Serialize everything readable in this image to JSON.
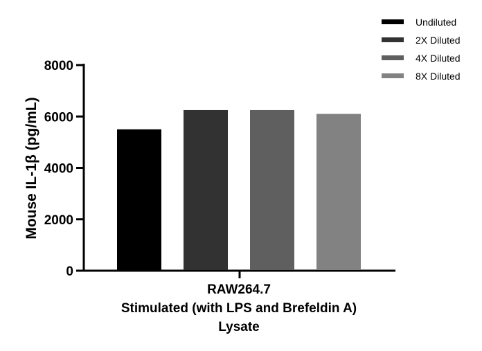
{
  "chart_data": {
    "type": "bar",
    "categories": [
      "RAW264.7"
    ],
    "series": [
      {
        "name": "Undiluted",
        "values": [
          5500
        ],
        "color": "#000000"
      },
      {
        "name": "2X Diluted",
        "values": [
          6250
        ],
        "color": "#323232"
      },
      {
        "name": "4X Diluted",
        "values": [
          6250
        ],
        "color": "#5f5f5f"
      },
      {
        "name": "8X Diluted",
        "values": [
          6100
        ],
        "color": "#828282"
      }
    ],
    "xlabel_lines": [
      "RAW264.7",
      "Stimulated (with LPS and Brefeldin A)",
      "Lysate"
    ],
    "ylabel": "Mouse IL-1β (pg/mL)",
    "ylim": [
      0,
      8000
    ],
    "yticks": [
      "0",
      "2000",
      "4000",
      "6000",
      "8000"
    ],
    "ytick_values": [
      0,
      2000,
      4000,
      6000,
      8000
    ],
    "grid": false,
    "legend_position": "top-right"
  }
}
